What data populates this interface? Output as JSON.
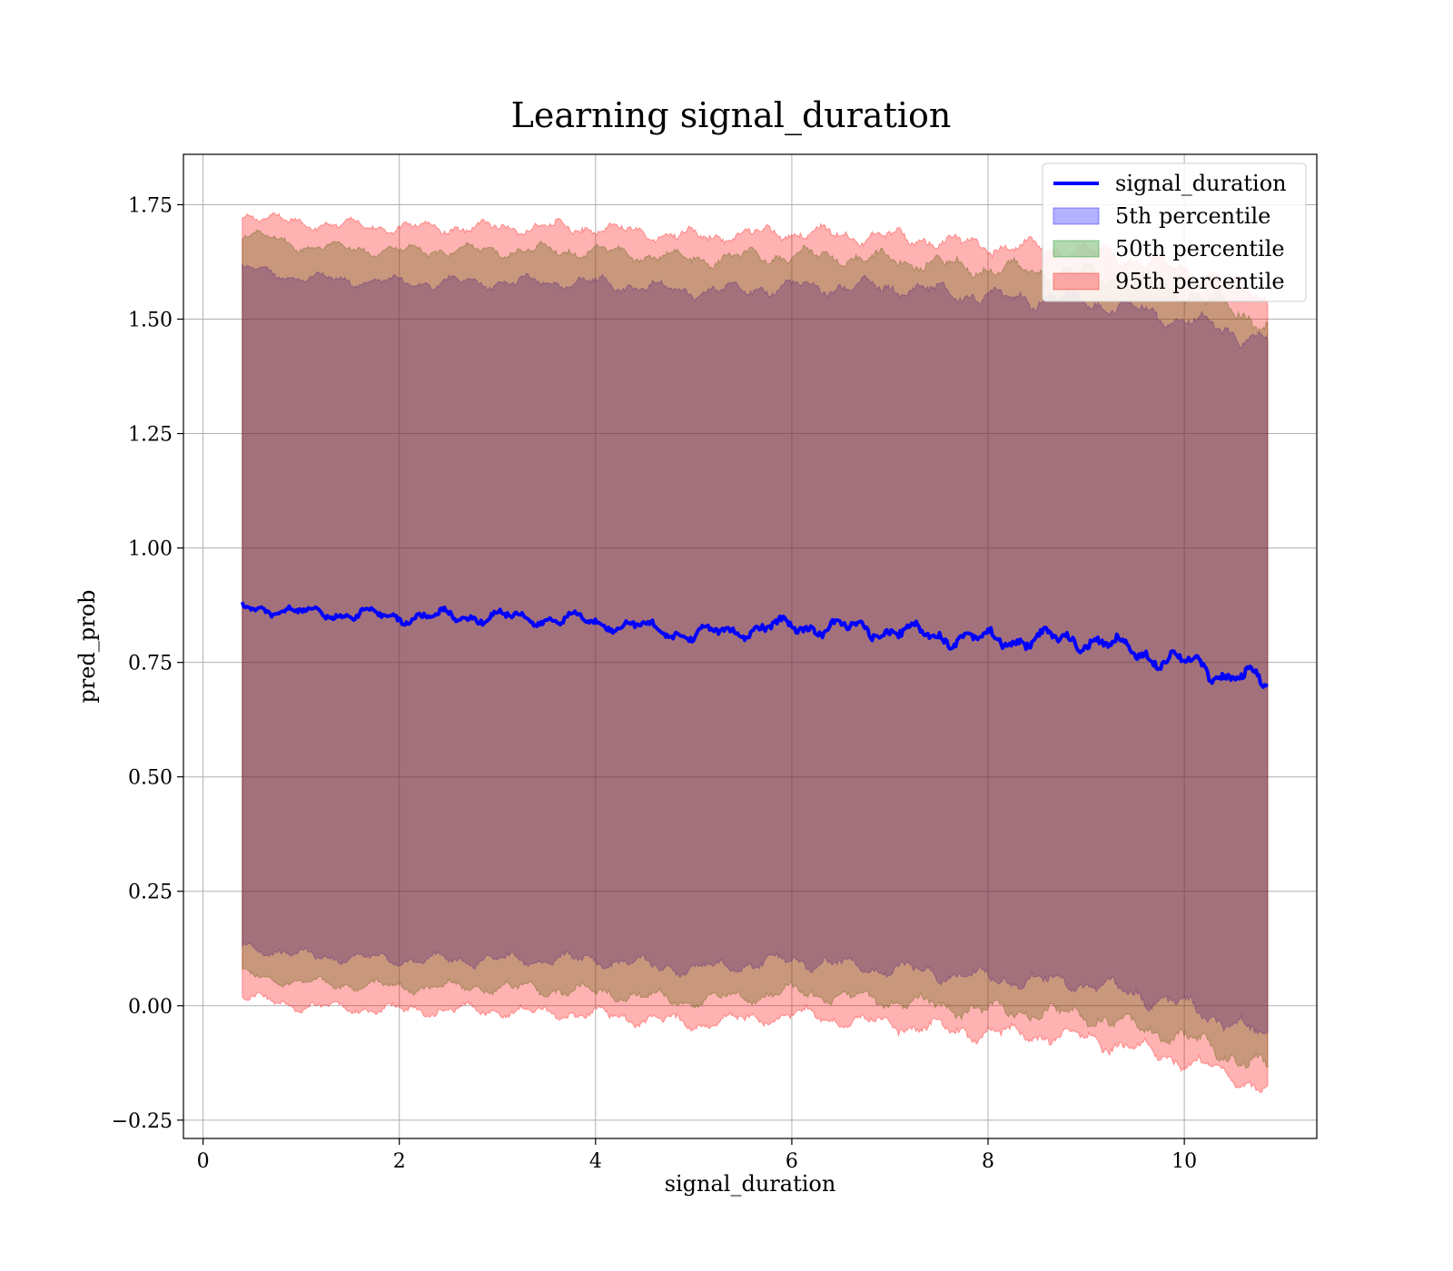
{
  "chart_data": {
    "type": "area",
    "title": "Learning signal_duration",
    "xlabel": "signal_duration",
    "ylabel": "pred_prob",
    "xlim": [
      -0.2,
      11.35
    ],
    "ylim": [
      -0.29,
      1.86
    ],
    "x_ticks": [
      0,
      2,
      4,
      6,
      8,
      10
    ],
    "x_tick_labels": [
      "0",
      "2",
      "4",
      "6",
      "8",
      "10"
    ],
    "y_ticks": [
      -0.25,
      0.0,
      0.25,
      0.5,
      0.75,
      1.0,
      1.25,
      1.5,
      1.75
    ],
    "y_tick_labels": [
      "−0.25",
      "0.00",
      "0.25",
      "0.50",
      "0.75",
      "1.00",
      "1.25",
      "1.50",
      "1.75"
    ],
    "grid": true,
    "legend_position": "top-right",
    "x": [
      0.4,
      1.0,
      2.0,
      3.0,
      4.0,
      5.0,
      6.0,
      7.0,
      8.0,
      9.0,
      10.0,
      10.85
    ],
    "series": [
      {
        "name": "signal_duration",
        "kind": "line",
        "color": "#0000ff",
        "values": [
          0.87,
          0.86,
          0.85,
          0.85,
          0.84,
          0.81,
          0.83,
          0.82,
          0.8,
          0.8,
          0.75,
          0.7
        ]
      },
      {
        "name": "5th percentile",
        "kind": "band",
        "color": "#0000ff",
        "lower": [
          0.13,
          0.11,
          0.1,
          0.1,
          0.1,
          0.08,
          0.1,
          0.08,
          0.06,
          0.05,
          0.0,
          -0.07
        ],
        "upper": [
          1.61,
          1.59,
          1.58,
          1.58,
          1.58,
          1.56,
          1.57,
          1.57,
          1.55,
          1.54,
          1.5,
          1.45
        ]
      },
      {
        "name": "50th percentile",
        "kind": "band",
        "color": "#008000",
        "lower": [
          0.07,
          0.05,
          0.04,
          0.04,
          0.03,
          0.01,
          0.03,
          0.01,
          -0.01,
          -0.02,
          -0.07,
          -0.14
        ],
        "upper": [
          1.69,
          1.66,
          1.65,
          1.65,
          1.65,
          1.63,
          1.64,
          1.63,
          1.61,
          1.6,
          1.56,
          1.49
        ]
      },
      {
        "name": "95th percentile",
        "kind": "band",
        "color": "#ff0000",
        "lower": [
          0.02,
          0.0,
          -0.01,
          -0.01,
          -0.02,
          -0.04,
          -0.02,
          -0.04,
          -0.06,
          -0.07,
          -0.12,
          -0.18
        ],
        "upper": [
          1.73,
          1.71,
          1.7,
          1.7,
          1.7,
          1.68,
          1.69,
          1.68,
          1.66,
          1.65,
          1.61,
          1.55
        ]
      }
    ]
  }
}
